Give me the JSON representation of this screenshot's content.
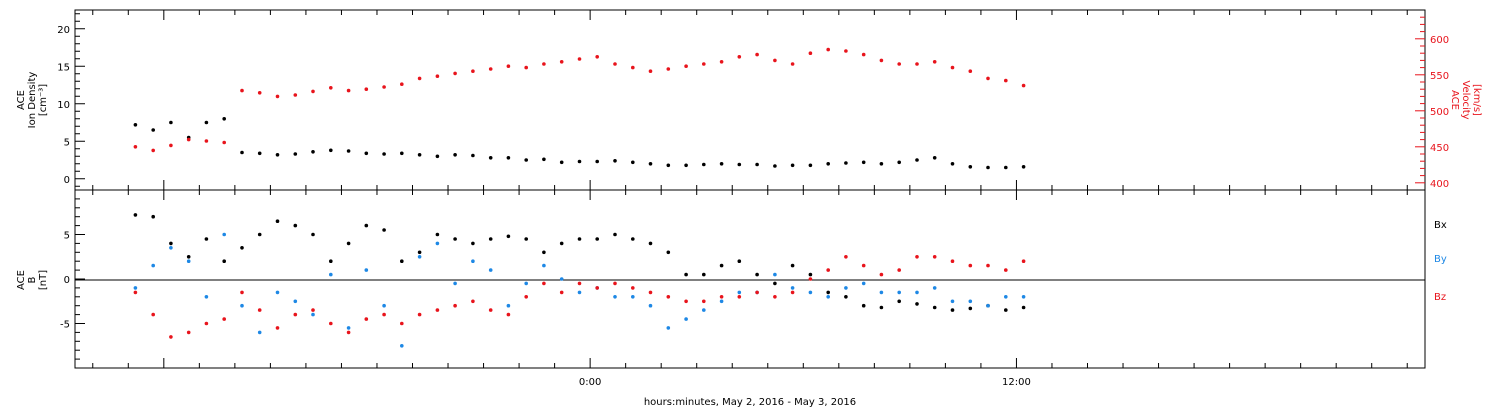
{
  "chart_data": [
    {
      "type": "scatter",
      "panel": "plasma",
      "left_axis": {
        "lines": [
          "ACE",
          "Ion Density",
          "[cm⁻³]"
        ],
        "ylim": [
          -1.5,
          22.5
        ],
        "ticks": [
          0,
          5,
          10,
          15,
          20
        ],
        "color": "#000000"
      },
      "right_axis": {
        "lines": [
          "ACE",
          "Velocity",
          "[km/s]"
        ],
        "ylim": [
          390,
          640
        ],
        "ticks": [
          400,
          450,
          500,
          550,
          600
        ],
        "color": "#e8141c"
      },
      "series": [
        {
          "color": "#000000",
          "axis": "left",
          "x": [
            -12.8,
            -12.3,
            -11.8,
            -11.3,
            -10.8,
            -10.3,
            -9.8,
            -9.3,
            -8.8,
            -8.3,
            -7.8,
            -7.3,
            -6.8,
            -6.3,
            -5.8,
            -5.3,
            -4.8,
            -4.3,
            -3.8,
            -3.3,
            -2.8,
            -2.3,
            -1.8,
            -1.3,
            -0.8,
            -0.3,
            0.2,
            0.7,
            1.2,
            1.7,
            2.2,
            2.7,
            3.2,
            3.7,
            4.2,
            4.7,
            5.2,
            5.7,
            6.2,
            6.7,
            7.2,
            7.7,
            8.2,
            8.7,
            9.2,
            9.7,
            10.2,
            10.7,
            11.2,
            11.7,
            12.2
          ],
          "values": [
            7.2,
            6.5,
            7.5,
            5.5,
            7.5,
            8.0,
            3.5,
            3.4,
            3.2,
            3.3,
            3.6,
            3.8,
            3.7,
            3.4,
            3.3,
            3.4,
            3.2,
            3.0,
            3.2,
            3.1,
            2.8,
            2.8,
            2.5,
            2.6,
            2.2,
            2.3,
            2.3,
            2.4,
            2.2,
            2.0,
            1.8,
            1.8,
            1.9,
            2.0,
            1.9,
            1.9,
            1.7,
            1.8,
            1.8,
            2.0,
            2.1,
            2.2,
            2.0,
            2.2,
            2.5,
            2.8,
            2.0,
            1.6,
            1.5,
            1.5,
            1.6
          ]
        },
        {
          "color": "#e8141c",
          "axis": "right",
          "x": [
            -12.8,
            -12.3,
            -11.8,
            -11.3,
            -10.8,
            -10.3,
            -9.8,
            -9.3,
            -8.8,
            -8.3,
            -7.8,
            -7.3,
            -6.8,
            -6.3,
            -5.8,
            -5.3,
            -4.8,
            -4.3,
            -3.8,
            -3.3,
            -2.8,
            -2.3,
            -1.8,
            -1.3,
            -0.8,
            -0.3,
            0.2,
            0.7,
            1.2,
            1.7,
            2.2,
            2.7,
            3.2,
            3.7,
            4.2,
            4.7,
            5.2,
            5.7,
            6.2,
            6.7,
            7.2,
            7.7,
            8.2,
            8.7,
            9.2,
            9.7,
            10.2,
            10.7,
            11.2,
            11.7,
            12.2
          ],
          "values": [
            450,
            445,
            452,
            460,
            458,
            456,
            528,
            525,
            520,
            522,
            527,
            532,
            528,
            530,
            533,
            537,
            545,
            548,
            552,
            555,
            558,
            562,
            560,
            565,
            568,
            572,
            575,
            565,
            560,
            555,
            558,
            562,
            565,
            568,
            575,
            578,
            570,
            565,
            580,
            585,
            583,
            578,
            570,
            565,
            565,
            568,
            560,
            555,
            545,
            542,
            535
          ]
        }
      ]
    },
    {
      "type": "scatter",
      "panel": "magnetic_field",
      "left_axis": {
        "lines": [
          "ACE",
          "B",
          "[nT]"
        ],
        "ylim": [
          -10,
          10
        ],
        "ticks": [
          -5,
          0,
          5
        ],
        "color": "#000000"
      },
      "legend": {
        "placement": "right",
        "entries": [
          {
            "label": "Bx",
            "color": "#000000"
          },
          {
            "label": "By",
            "color": "#1e88e5"
          },
          {
            "label": "Bz",
            "color": "#e8141c"
          }
        ]
      },
      "series": [
        {
          "name": "Bx",
          "color": "#000000",
          "x": [
            -12.8,
            -12.3,
            -11.8,
            -11.3,
            -10.8,
            -10.3,
            -9.8,
            -9.3,
            -8.8,
            -8.3,
            -7.8,
            -7.3,
            -6.8,
            -6.3,
            -5.8,
            -5.3,
            -4.8,
            -4.3,
            -3.8,
            -3.3,
            -2.8,
            -2.3,
            -1.8,
            -1.3,
            -0.8,
            -0.3,
            0.2,
            0.7,
            1.2,
            1.7,
            2.2,
            2.7,
            3.2,
            3.7,
            4.2,
            4.7,
            5.2,
            5.7,
            6.2,
            6.7,
            7.2,
            7.7,
            8.2,
            8.7,
            9.2,
            9.7,
            10.2,
            10.7,
            11.2,
            11.7,
            12.2
          ],
          "values": [
            7.2,
            7.0,
            4.0,
            2.5,
            4.5,
            2.0,
            3.5,
            5.0,
            6.5,
            6.0,
            5.0,
            2.0,
            4.0,
            6.0,
            5.5,
            2.0,
            3.0,
            5.0,
            4.5,
            4.0,
            4.5,
            4.8,
            4.5,
            3.0,
            4.0,
            4.5,
            4.5,
            5.0,
            4.5,
            4.0,
            3.0,
            0.5,
            0.5,
            1.5,
            2.0,
            0.5,
            -0.5,
            1.5,
            0.5,
            -1.5,
            -2.0,
            -3.0,
            -3.2,
            -2.5,
            -2.8,
            -3.2,
            -3.5,
            -3.3,
            -3.0,
            -3.5,
            -3.2
          ]
        },
        {
          "name": "By",
          "color": "#1e88e5",
          "x": [
            -12.8,
            -12.3,
            -11.8,
            -11.3,
            -10.8,
            -10.3,
            -9.8,
            -9.3,
            -8.8,
            -8.3,
            -7.8,
            -7.3,
            -6.8,
            -6.3,
            -5.8,
            -5.3,
            -4.8,
            -4.3,
            -3.8,
            -3.3,
            -2.8,
            -2.3,
            -1.8,
            -1.3,
            -0.8,
            -0.3,
            0.2,
            0.7,
            1.2,
            1.7,
            2.2,
            2.7,
            3.2,
            3.7,
            4.2,
            4.7,
            5.2,
            5.7,
            6.2,
            6.7,
            7.2,
            7.7,
            8.2,
            8.7,
            9.2,
            9.7,
            10.2,
            10.7,
            11.2,
            11.7,
            12.2
          ],
          "values": [
            -1.0,
            1.5,
            3.5,
            2.0,
            -2.0,
            5.0,
            -3.0,
            -6.0,
            -1.5,
            -2.5,
            -4.0,
            0.5,
            -5.5,
            1.0,
            -3.0,
            -7.5,
            2.5,
            4.0,
            -0.5,
            2.0,
            1.0,
            -3.0,
            -0.5,
            1.5,
            0.0,
            -1.5,
            -1.0,
            -2.0,
            -2.0,
            -3.0,
            -5.5,
            -4.5,
            -3.5,
            -2.5,
            -1.5,
            -1.5,
            0.5,
            -1.0,
            -1.5,
            -2.0,
            -1.0,
            -0.5,
            -1.5,
            -1.5,
            -1.5,
            -1.0,
            -2.5,
            -2.5,
            -3.0,
            -2.0,
            -2.0
          ]
        },
        {
          "name": "Bz",
          "color": "#e8141c",
          "x": [
            -12.8,
            -12.3,
            -11.8,
            -11.3,
            -10.8,
            -10.3,
            -9.8,
            -9.3,
            -8.8,
            -8.3,
            -7.8,
            -7.3,
            -6.8,
            -6.3,
            -5.8,
            -5.3,
            -4.8,
            -4.3,
            -3.8,
            -3.3,
            -2.8,
            -2.3,
            -1.8,
            -1.3,
            -0.8,
            -0.3,
            0.2,
            0.7,
            1.2,
            1.7,
            2.2,
            2.7,
            3.2,
            3.7,
            4.2,
            4.7,
            5.2,
            5.7,
            6.2,
            6.7,
            7.2,
            7.7,
            8.2,
            8.7,
            9.2,
            9.7,
            10.2,
            10.7,
            11.2,
            11.7,
            12.2
          ],
          "values": [
            -1.5,
            -4.0,
            -6.5,
            -6.0,
            -5.0,
            -4.5,
            -1.5,
            -3.5,
            -5.5,
            -4.0,
            -3.5,
            -5.0,
            -6.0,
            -4.5,
            -4.0,
            -5.0,
            -4.0,
            -3.5,
            -3.0,
            -2.5,
            -3.5,
            -4.0,
            -2.0,
            -0.5,
            -1.5,
            -0.5,
            -1.0,
            -0.5,
            -1.0,
            -1.5,
            -2.0,
            -2.5,
            -2.5,
            -2.0,
            -2.0,
            -1.5,
            -2.0,
            -1.5,
            0.0,
            1.0,
            2.5,
            1.5,
            0.5,
            1.0,
            2.5,
            2.5,
            2.0,
            1.5,
            1.5,
            1.0,
            2.0
          ]
        }
      ]
    }
  ],
  "x_axis": {
    "range": [
      -14.5,
      23.5
    ],
    "major_ticks": [
      0,
      12
    ],
    "tick_labels": [
      "0:00",
      "12:00"
    ],
    "label": "hours:minutes, May  2, 2016 - May  3, 2016"
  }
}
